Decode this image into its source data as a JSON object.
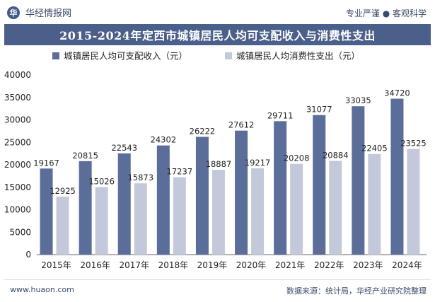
{
  "header": {
    "brand": "华经情报网",
    "slogan": "专业严谨 ● 客观科学",
    "logo_text": "华"
  },
  "footer": {
    "website": "www.huaon.com",
    "source": "数据来源：统计局，华经产业研究院整理"
  },
  "colors": {
    "series1": "#5b6e9a",
    "series2": "#c3c9da",
    "title_bg": "#4a5f8a"
  },
  "chart_data": {
    "type": "bar",
    "title": "2015-2024年定西市城镇居民人均可支配收入与消费性支出",
    "categories": [
      "2015年",
      "2016年",
      "2017年",
      "2018年",
      "2019年",
      "2020年",
      "2021年",
      "2022年",
      "2023年",
      "2024年"
    ],
    "series": [
      {
        "name": "城镇居民人均可支配收入（元）",
        "values": [
          19167,
          20815,
          22543,
          24302,
          26222,
          27612,
          29711,
          31077,
          33035,
          34720
        ]
      },
      {
        "name": "城镇居民人均消费性支出（元）",
        "values": [
          12925,
          15026,
          15873,
          17237,
          18887,
          19217,
          20208,
          20884,
          22405,
          23525
        ]
      }
    ],
    "ylim": [
      0,
      40000
    ],
    "yticks": [
      0,
      5000,
      10000,
      15000,
      20000,
      25000,
      30000,
      35000,
      40000
    ],
    "legend_position": "top-left",
    "grid": false
  }
}
